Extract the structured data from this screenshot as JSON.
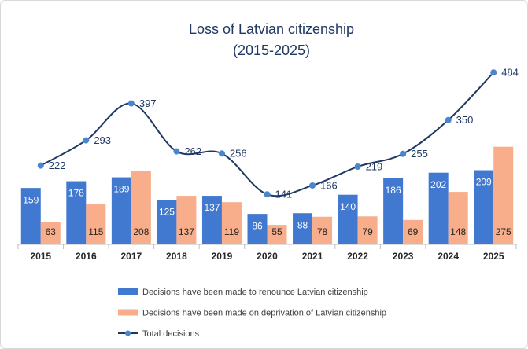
{
  "chart_data": {
    "type": "bar-line",
    "title": "Loss of Latvian citizenship",
    "subtitle": "(2015-2025)",
    "categories": [
      "2015",
      "2016",
      "2017",
      "2018",
      "2019",
      "2020",
      "2021",
      "2022",
      "2023",
      "2024",
      "2025"
    ],
    "ylim": [
      0,
      500
    ],
    "series": [
      {
        "name": "Decisions have been made to renounce Latvian citizenship",
        "type": "bar",
        "color": "#4178d0",
        "values": [
          159,
          178,
          189,
          125,
          137,
          86,
          88,
          140,
          186,
          202,
          209
        ]
      },
      {
        "name": "Decisions have been made on deprivation of Latvian citizenship",
        "type": "bar",
        "color": "#f8ad8b",
        "values": [
          63,
          115,
          208,
          137,
          119,
          55,
          78,
          79,
          69,
          148,
          275
        ]
      },
      {
        "name": "Total decisions",
        "type": "line",
        "color": "#1f3864",
        "marker_color": "#4a86d0",
        "values": [
          222,
          293,
          397,
          262,
          256,
          141,
          166,
          219,
          255,
          350,
          484
        ]
      }
    ]
  }
}
